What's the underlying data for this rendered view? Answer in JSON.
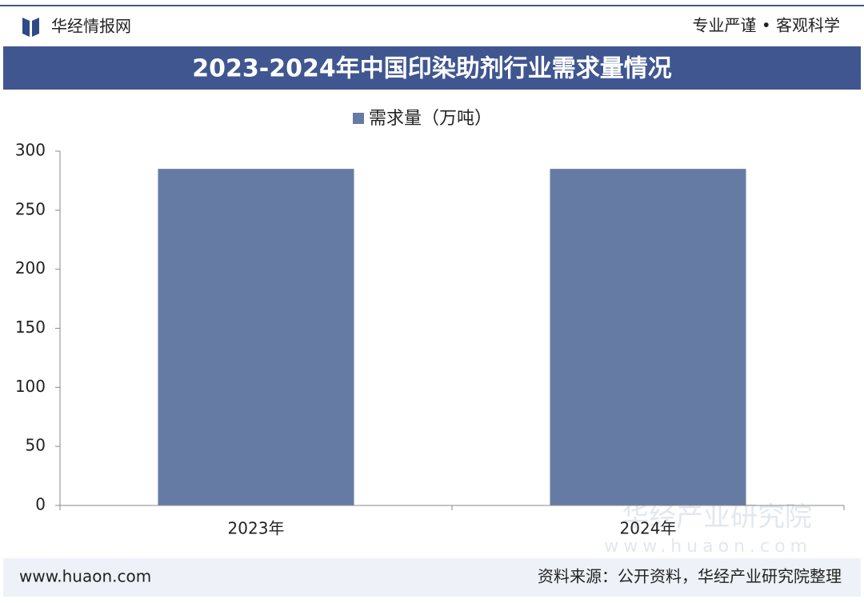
{
  "header": {
    "brand": "华经情报网",
    "slogan": "专业严谨 • 客观科学"
  },
  "chart_data": {
    "type": "bar",
    "title": "2023-2024年中国印染助剂行业需求量情况",
    "categories": [
      "2023年",
      "2024年"
    ],
    "series": [
      {
        "name": "需求量（万吨）",
        "color": "#667ba3",
        "values": [
          285,
          285
        ]
      }
    ],
    "ylim": [
      0,
      300
    ],
    "yticks": [
      0,
      50,
      100,
      150,
      200,
      250,
      300
    ],
    "grid": false,
    "legend": "top"
  },
  "watermark": {
    "name": "华经产业研究院",
    "url": "www.huaon.com"
  },
  "footer": {
    "website": "www.huaon.com",
    "source": "资料来源：公开资料，华经产业研究院整理"
  }
}
